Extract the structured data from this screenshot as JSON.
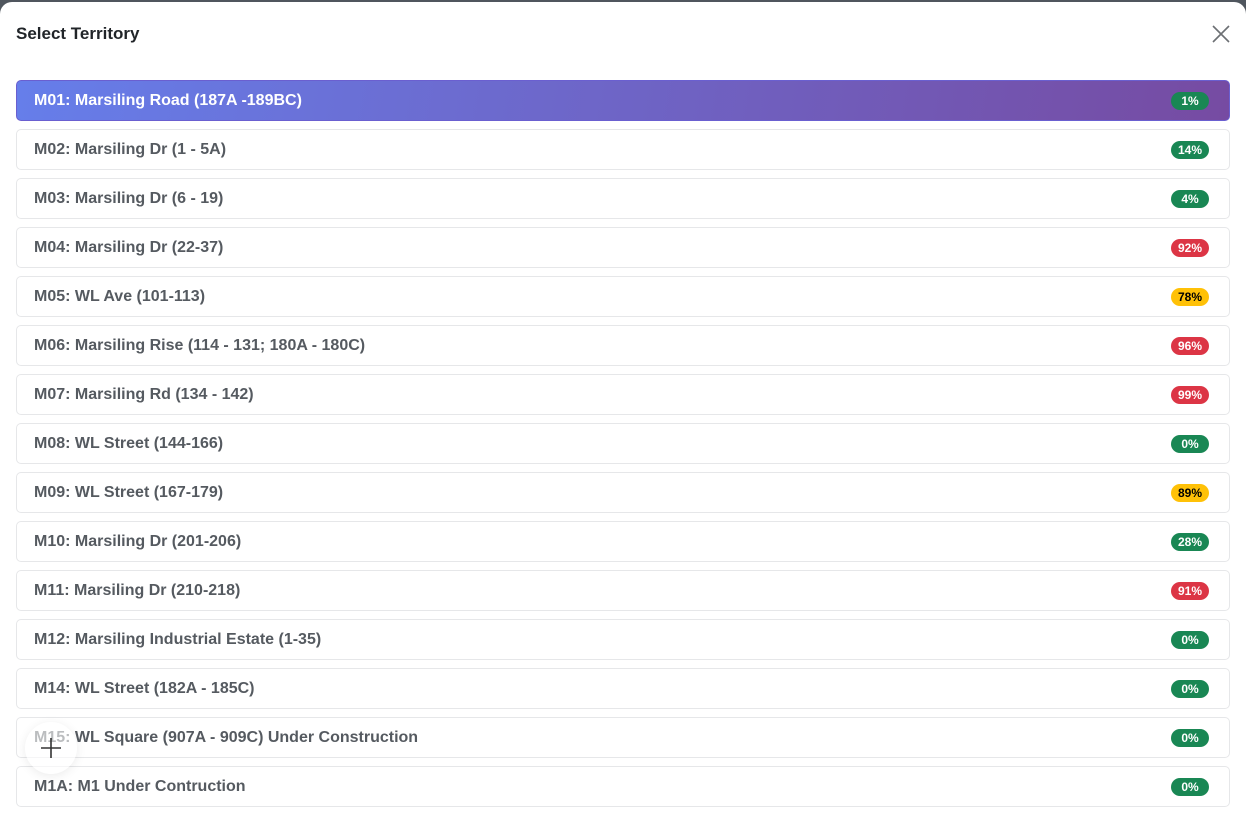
{
  "modal": {
    "title": "Select Territory",
    "close_icon": "close-icon"
  },
  "colors": {
    "green": "#198754",
    "red": "#dc3545",
    "yellow": "#ffc107",
    "active_gradient_start": "#667eea",
    "active_gradient_end": "#764ba2"
  },
  "territories": [
    {
      "label": "M01: Marsiling Road (187A -189BC)",
      "percent": "1%",
      "status": "green",
      "selected": true
    },
    {
      "label": "M02: Marsiling Dr (1 - 5A)",
      "percent": "14%",
      "status": "green"
    },
    {
      "label": "M03: Marsiling Dr (6 - 19)",
      "percent": "4%",
      "status": "green"
    },
    {
      "label": "M04: Marsiling Dr (22-37)",
      "percent": "92%",
      "status": "red"
    },
    {
      "label": "M05: WL Ave (101-113)",
      "percent": "78%",
      "status": "yellow"
    },
    {
      "label": "M06: Marsiling Rise (114 - 131; 180A - 180C)",
      "percent": "96%",
      "status": "red"
    },
    {
      "label": "M07: Marsiling Rd (134 - 142)",
      "percent": "99%",
      "status": "red"
    },
    {
      "label": "M08: WL Street (144-166)",
      "percent": "0%",
      "status": "green"
    },
    {
      "label": "M09: WL Street (167-179)",
      "percent": "89%",
      "status": "yellow"
    },
    {
      "label": "M10: Marsiling Dr (201-206)",
      "percent": "28%",
      "status": "green"
    },
    {
      "label": "M11: Marsiling Dr (210-218)",
      "percent": "91%",
      "status": "red"
    },
    {
      "label": "M12: Marsiling Industrial Estate (1-35)",
      "percent": "0%",
      "status": "green"
    },
    {
      "label": "M14: WL Street (182A - 185C)",
      "percent": "0%",
      "status": "green"
    },
    {
      "label": "M15: WL Square (907A - 909C) Under Construction",
      "percent": "0%",
      "status": "green"
    },
    {
      "label": "M1A: M1 Under Contruction",
      "percent": "0%",
      "status": "green"
    }
  ],
  "fab": {
    "icon": "plus-icon"
  }
}
